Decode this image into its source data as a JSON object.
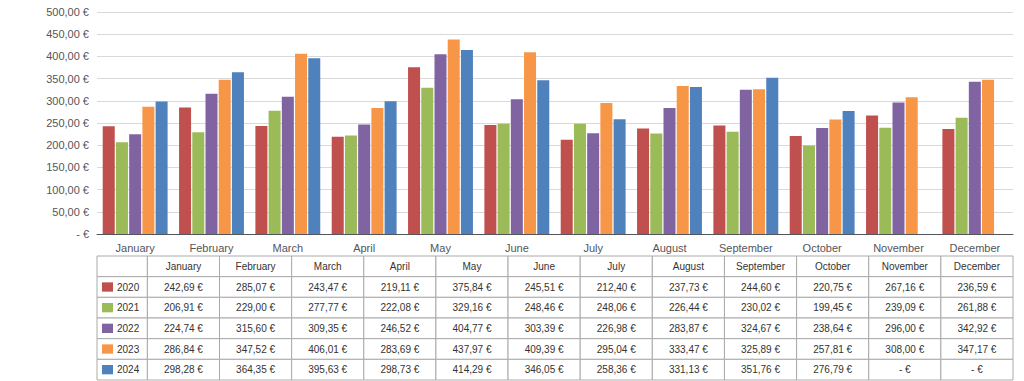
{
  "chart_data": {
    "type": "bar",
    "categories": [
      "January",
      "February",
      "March",
      "April",
      "May",
      "June",
      "July",
      "August",
      "September",
      "October",
      "November",
      "December"
    ],
    "series": [
      {
        "name": "2020",
        "color": "#C0504D",
        "values": [
          242.69,
          285.07,
          243.47,
          219.11,
          375.84,
          245.51,
          212.4,
          237.73,
          244.6,
          220.75,
          267.16,
          236.59
        ],
        "value_labels": [
          "242,69 €",
          "285,07 €",
          "243,47 €",
          "219,11 €",
          "375,84 €",
          "245,51 €",
          "212,40 €",
          "237,73 €",
          "244,60 €",
          "220,75 €",
          "267,16 €",
          "236,59 €"
        ]
      },
      {
        "name": "2021",
        "color": "#9BBB59",
        "values": [
          206.91,
          229.0,
          277.77,
          222.08,
          329.16,
          248.46,
          248.06,
          226.44,
          230.02,
          199.45,
          239.09,
          261.88
        ],
        "value_labels": [
          "206,91 €",
          "229,00 €",
          "277,77 €",
          "222,08 €",
          "329,16 €",
          "248,46 €",
          "248,06 €",
          "226,44 €",
          "230,02 €",
          "199,45 €",
          "239,09 €",
          "261,88 €"
        ]
      },
      {
        "name": "2022",
        "color": "#8064A2",
        "values": [
          224.74,
          315.6,
          309.35,
          246.52,
          404.77,
          303.39,
          226.98,
          283.87,
          324.67,
          238.64,
          296.0,
          342.92
        ],
        "value_labels": [
          "224,74 €",
          "315,60 €",
          "309,35 €",
          "246,52 €",
          "404,77 €",
          "303,39 €",
          "226,98 €",
          "283,87 €",
          "324,67 €",
          "238,64 €",
          "296,00 €",
          "342,92 €"
        ]
      },
      {
        "name": "2023",
        "color": "#F79646",
        "values": [
          286.84,
          347.52,
          406.01,
          283.69,
          437.97,
          409.39,
          295.04,
          333.47,
          325.89,
          257.81,
          308.0,
          347.17
        ],
        "value_labels": [
          "286,84 €",
          "347,52 €",
          "406,01 €",
          "283,69 €",
          "437,97 €",
          "409,39 €",
          "295,04 €",
          "333,47 €",
          "325,89 €",
          "257,81 €",
          "308,00 €",
          "347,17 €"
        ]
      },
      {
        "name": "2024",
        "color": "#4F81BD",
        "values": [
          298.28,
          364.35,
          395.63,
          298.73,
          414.29,
          346.05,
          258.36,
          331.13,
          351.76,
          276.79,
          0,
          0
        ],
        "value_labels": [
          "298,28 €",
          "364,35 €",
          "395,63 €",
          "298,73 €",
          "414,29 €",
          "346,05 €",
          "258,36 €",
          "331,13 €",
          "351,76 €",
          "276,79 €",
          "- €",
          "- €"
        ]
      }
    ],
    "ylim": [
      0,
      500
    ],
    "yticks": [
      {
        "value": 0,
        "label": "- €"
      },
      {
        "value": 50,
        "label": "50,00 €"
      },
      {
        "value": 100,
        "label": "100,00 €"
      },
      {
        "value": 150,
        "label": "150,00 €"
      },
      {
        "value": 200,
        "label": "200,00 €"
      },
      {
        "value": 250,
        "label": "250,00 €"
      },
      {
        "value": 300,
        "label": "300,00 €"
      },
      {
        "value": 350,
        "label": "350,00 €"
      },
      {
        "value": 400,
        "label": "400,00 €"
      },
      {
        "value": 450,
        "label": "450,00 €"
      },
      {
        "value": 500,
        "label": "500,00 €"
      }
    ],
    "grid": true
  }
}
